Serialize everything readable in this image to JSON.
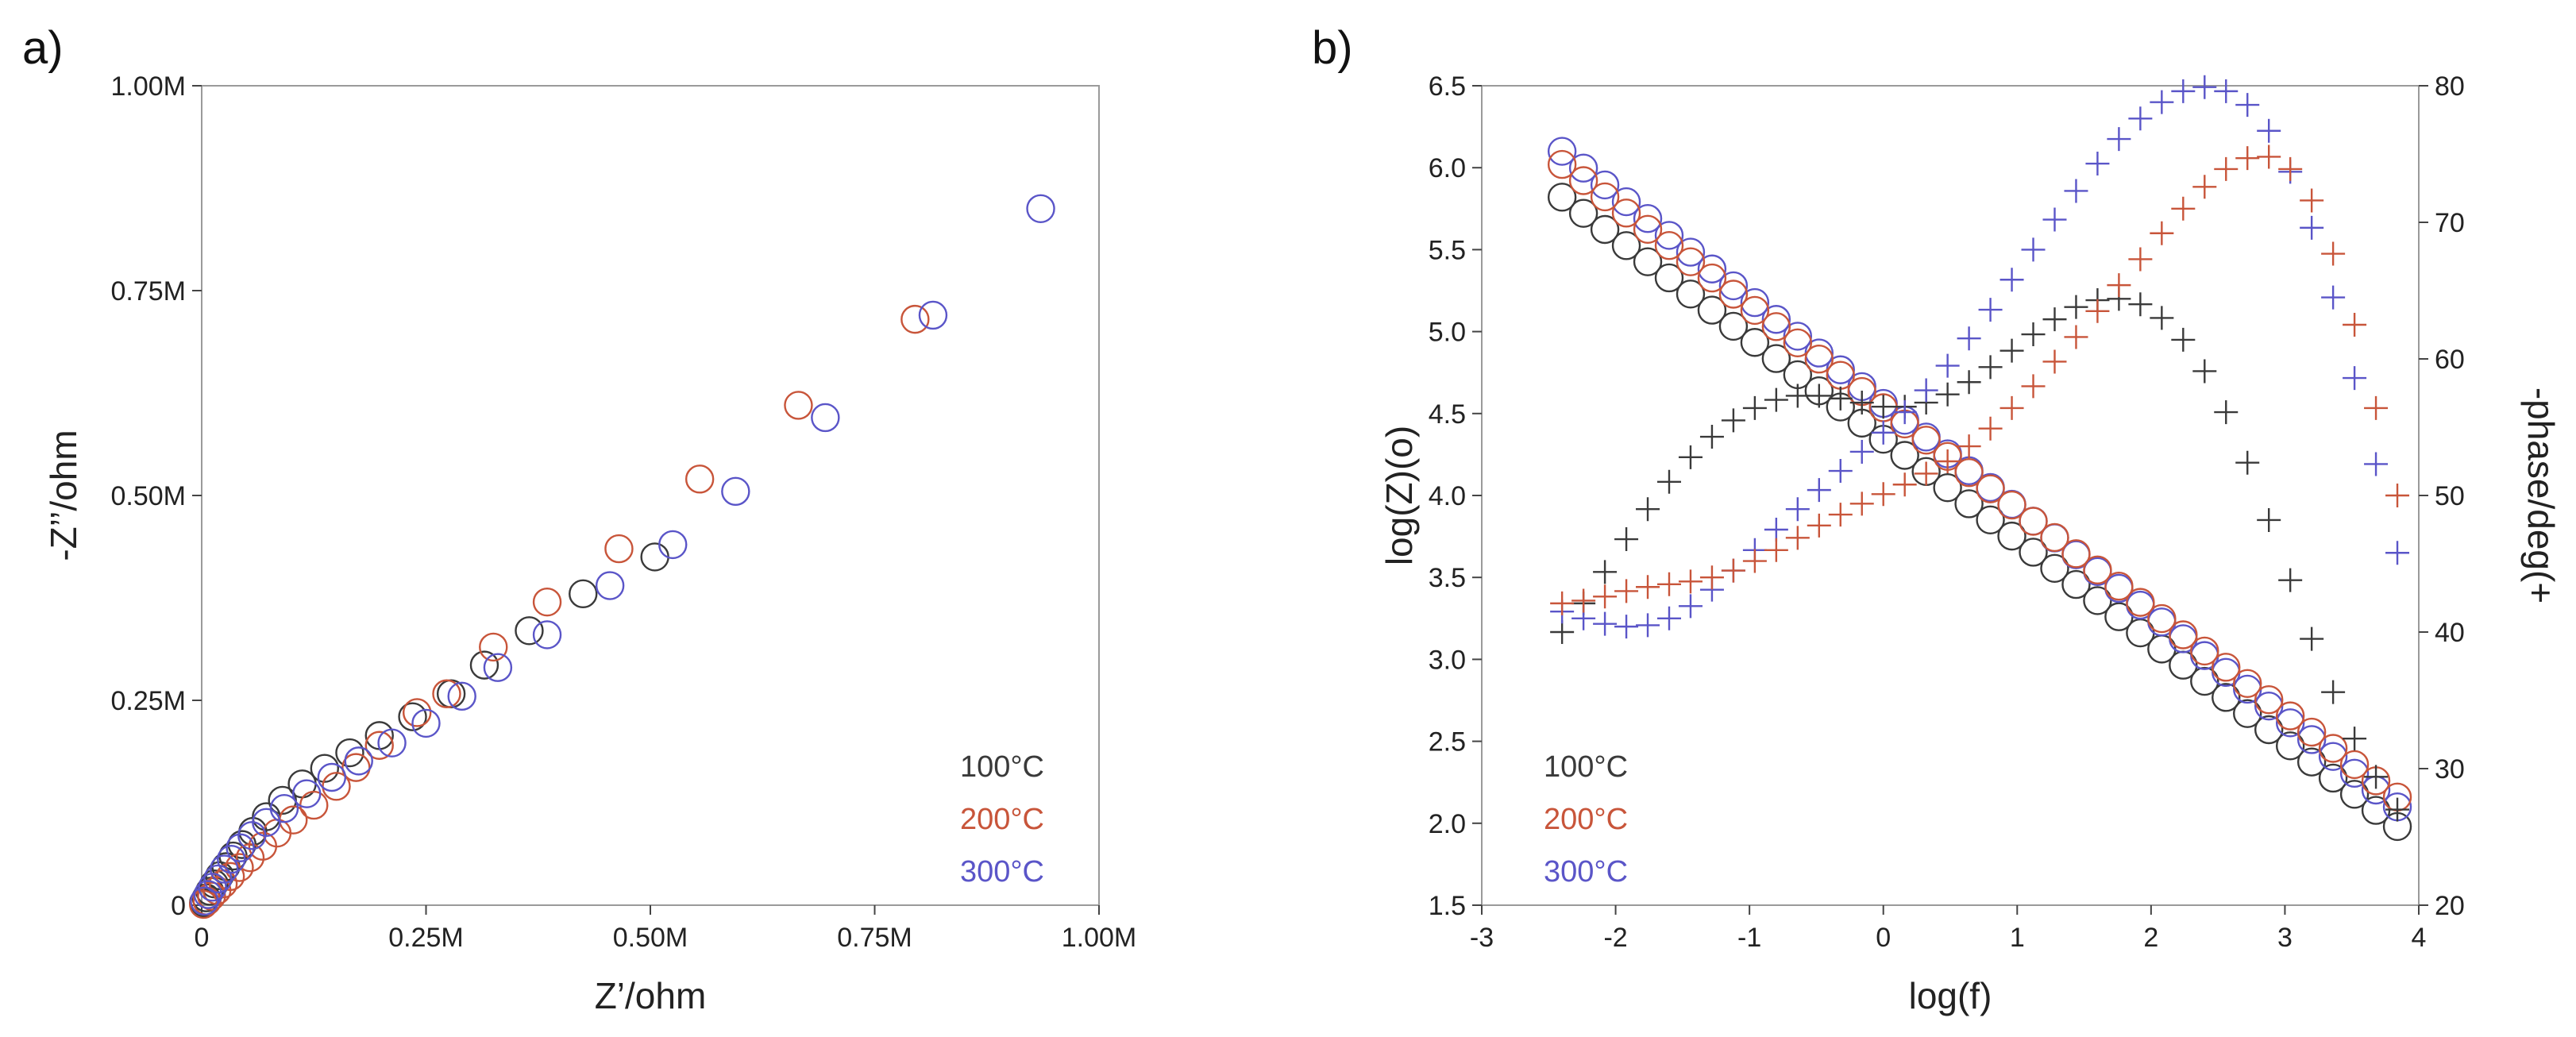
{
  "colors": {
    "c100": "#3a3a3a",
    "c200": "#c8553a",
    "c300": "#5a55c8"
  },
  "chart_data": [
    {
      "panel": "a)",
      "type": "scatter",
      "marker": "circle",
      "xlabel": "Z’/ohm",
      "ylabel": "-Z’’/ohm",
      "xlim": [
        0,
        1000000
      ],
      "ylim": [
        0,
        1000000
      ],
      "xticks": [
        0,
        250000,
        500000,
        750000,
        1000000
      ],
      "xtick_labels": [
        "0",
        "0.25M",
        "0.50M",
        "0.75M",
        "1.00M"
      ],
      "yticks": [
        0,
        250000,
        500000,
        750000,
        1000000
      ],
      "ytick_labels": [
        "0",
        "0.25M",
        "0.50M",
        "0.75M",
        "1.00M"
      ],
      "legend": [
        "100°C",
        "200°C",
        "300°C"
      ],
      "legend_position": "bottom-right",
      "series": [
        {
          "name": "100°C",
          "x": [
            2000,
            5000,
            9000,
            14000,
            20000,
            27000,
            35000,
            45000,
            57000,
            72000,
            90000,
            112000,
            137000,
            165000,
            198000,
            235000,
            278000,
            315000,
            365000,
            425000,
            505000
          ],
          "y": [
            3000,
            9000,
            17000,
            26000,
            36000,
            47000,
            60000,
            74000,
            90000,
            108000,
            128000,
            148000,
            167000,
            186000,
            207000,
            230000,
            258000,
            293000,
            335000,
            380000,
            425000
          ]
        },
        {
          "name": "200°C",
          "x": [
            2000,
            6000,
            11000,
            17000,
            24000,
            32000,
            42000,
            54000,
            68000,
            84000,
            102000,
            125000,
            150000,
            172000,
            198000,
            240000,
            273000,
            325000,
            385000,
            465000,
            555000,
            665000,
            795000
          ],
          "y": [
            1000,
            5000,
            11000,
            18000,
            26000,
            35000,
            46000,
            58000,
            72000,
            88000,
            104000,
            122000,
            145000,
            168000,
            195000,
            235000,
            258000,
            315000,
            370000,
            435000,
            520000,
            610000,
            715000
          ]
        },
        {
          "name": "300°C",
          "x": [
            3000,
            7000,
            12000,
            18000,
            25000,
            33000,
            43000,
            56000,
            72000,
            92000,
            117000,
            145000,
            175000,
            212000,
            250000,
            290000,
            330000,
            385000,
            455000,
            525000,
            595000,
            695000,
            815000,
            935000
          ],
          "y": [
            5000,
            13000,
            22000,
            32000,
            44000,
            56000,
            70000,
            85000,
            101000,
            118000,
            136000,
            156000,
            176000,
            198000,
            222000,
            255000,
            290000,
            330000,
            390000,
            440000,
            505000,
            595000,
            720000,
            850000
          ]
        }
      ]
    },
    {
      "panel": "b)",
      "type": "scatter",
      "marker": "circle (log|Z|) and plus (phase)",
      "xlabel": "log(f)",
      "ylabel": "log(Z)(o)",
      "y2label": "-phase/deg(+",
      "xlim": [
        -3,
        4
      ],
      "ylim": [
        1.5,
        6.5
      ],
      "y2lim": [
        20,
        80
      ],
      "xticks": [
        -3,
        -2,
        -1,
        0,
        1,
        2,
        3,
        4
      ],
      "xtick_labels": [
        "-3",
        "-2",
        "-1",
        "0",
        "1",
        "2",
        "3",
        "4"
      ],
      "yticks": [
        1.5,
        2.0,
        2.5,
        3.0,
        3.5,
        4.0,
        4.5,
        5.0,
        5.5,
        6.0,
        6.5
      ],
      "ytick_labels": [
        "1.5",
        "2.0",
        "2.5",
        "3.0",
        "3.5",
        "4.0",
        "4.5",
        "5.0",
        "5.5",
        "6.0",
        "6.5"
      ],
      "y2ticks": [
        20,
        30,
        40,
        50,
        60,
        70,
        80
      ],
      "y2tick_labels": [
        "20",
        "30",
        "40",
        "50",
        "60",
        "70",
        "80"
      ],
      "legend": [
        "100°C",
        "200°C",
        "300°C"
      ],
      "legend_position": "bottom-left",
      "logf": {
        "start": -2.4,
        "step": 0.16,
        "count": 40
      },
      "series": [
        {
          "name": "100°C",
          "logz": {
            "start": 5.82,
            "end": 1.98
          },
          "phase": [
            40.0,
            42.1,
            44.4,
            46.8,
            49.0,
            51.0,
            52.8,
            54.3,
            55.5,
            56.4,
            57.0,
            57.3,
            57.3,
            57.1,
            56.8,
            56.5,
            56.5,
            56.8,
            57.4,
            58.3,
            59.4,
            60.6,
            61.8,
            62.9,
            63.8,
            64.3,
            64.4,
            64.0,
            63.0,
            61.4,
            59.1,
            56.1,
            52.4,
            48.2,
            43.8,
            39.5,
            35.6,
            32.2,
            29.4,
            27.0
          ]
        },
        {
          "name": "200°C",
          "logz": {
            "start": 6.02,
            "end": 2.16
          },
          "phase": [
            42.1,
            42.3,
            42.6,
            43.0,
            43.3,
            43.5,
            43.7,
            44.0,
            44.5,
            45.2,
            46.0,
            46.9,
            47.8,
            48.6,
            49.4,
            50.1,
            50.8,
            51.6,
            52.5,
            53.6,
            54.9,
            56.4,
            58.0,
            59.8,
            61.6,
            63.5,
            65.4,
            67.3,
            69.2,
            71.0,
            72.6,
            73.9,
            74.7,
            74.8,
            73.9,
            71.6,
            67.7,
            62.5,
            56.4,
            50.0
          ]
        },
        {
          "name": "300°C",
          "logz": {
            "start": 6.1,
            "end": 2.1
          },
          "phase": [
            41.5,
            41.0,
            40.6,
            40.4,
            40.5,
            41.0,
            41.9,
            43.1,
            44.5,
            46.0,
            47.5,
            49.0,
            50.4,
            51.8,
            53.2,
            54.6,
            56.1,
            57.7,
            59.5,
            61.5,
            63.6,
            65.8,
            68.0,
            70.2,
            72.3,
            74.3,
            76.1,
            77.6,
            78.8,
            79.6,
            79.9,
            79.6,
            78.6,
            76.7,
            73.7,
            69.6,
            64.5,
            58.6,
            52.3,
            45.8
          ]
        }
      ]
    }
  ]
}
